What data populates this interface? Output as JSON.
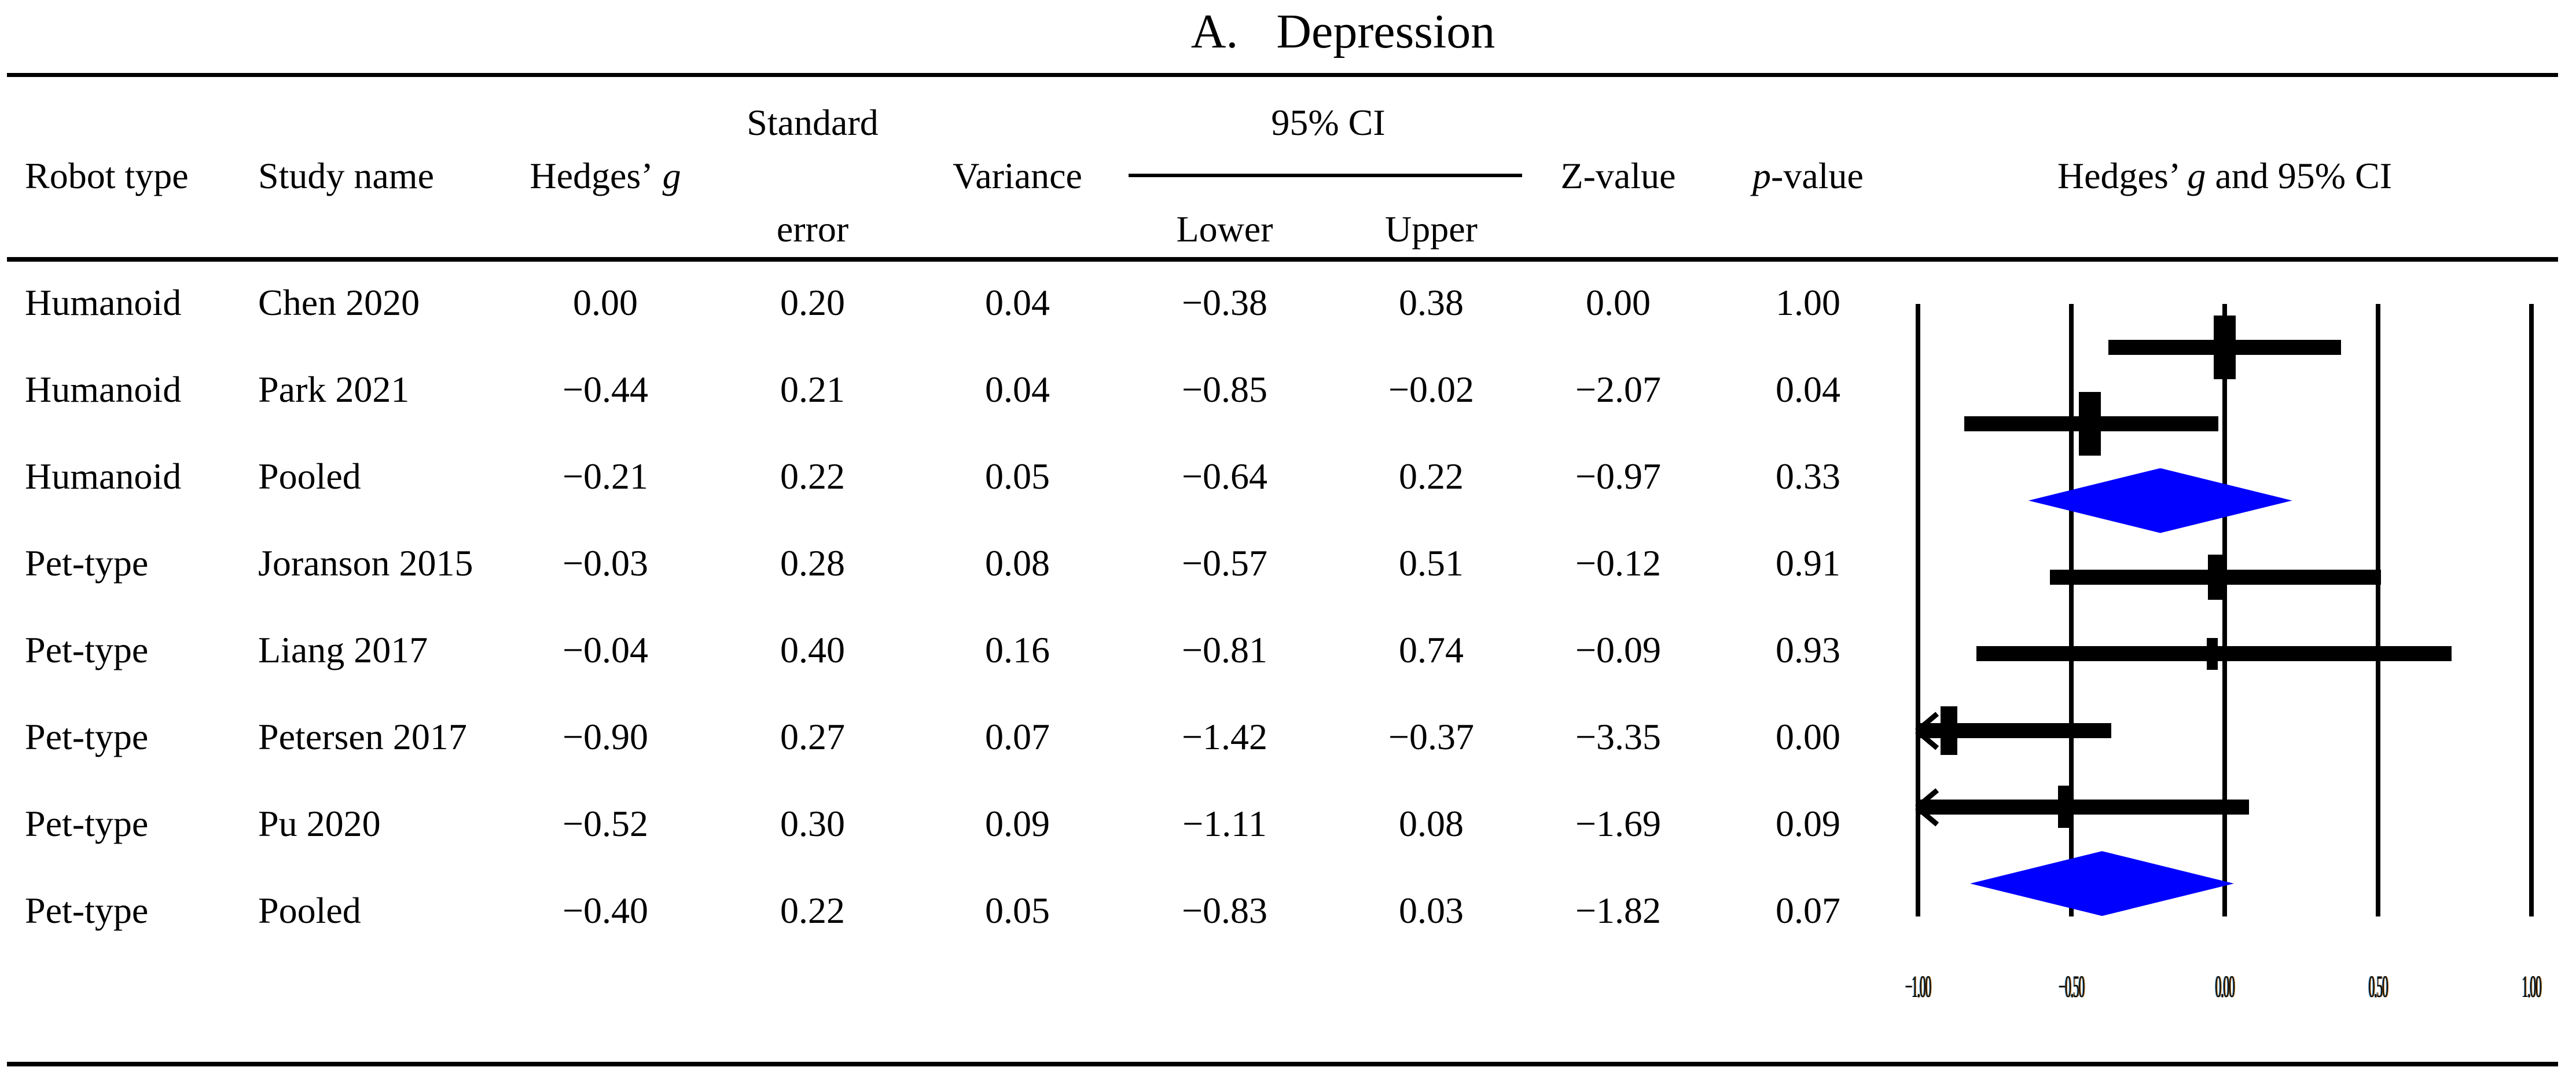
{
  "title": {
    "prefix": "A.",
    "text": "Depression"
  },
  "table": {
    "headers": {
      "robot_type": "Robot type",
      "study_name": "Study name",
      "hedges_prefix": "Hedges’",
      "hedges_g_italic": "g",
      "standard_line1": "Standard",
      "standard_line2": "error",
      "variance": "Variance",
      "ci_group": "95% CI",
      "ci_lower": "Lower",
      "ci_upper": "Upper",
      "z_value": "Z-value",
      "p_italic": "p",
      "p_suffix": "-value",
      "plot_prefix": "Hedges’ ",
      "plot_g_italic": "g",
      "plot_suffix": " and 95% CI"
    },
    "rows": [
      {
        "robot_type": "Humanoid",
        "study": "Chen 2020",
        "g": "0.00",
        "se": "0.20",
        "variance": "0.04",
        "lower": "−0.38",
        "upper": "0.38",
        "z": "0.00",
        "p": "1.00"
      },
      {
        "robot_type": "Humanoid",
        "study": "Park 2021",
        "g": "−0.44",
        "se": "0.21",
        "variance": "0.04",
        "lower": "−0.85",
        "upper": "−0.02",
        "z": "−2.07",
        "p": "0.04"
      },
      {
        "robot_type": "Humanoid",
        "study": "Pooled",
        "g": "−0.21",
        "se": "0.22",
        "variance": "0.05",
        "lower": "−0.64",
        "upper": "0.22",
        "z": "−0.97",
        "p": "0.33"
      },
      {
        "robot_type": "Pet-type",
        "study": "Joranson 2015",
        "g": "−0.03",
        "se": "0.28",
        "variance": "0.08",
        "lower": "−0.57",
        "upper": "0.51",
        "z": "−0.12",
        "p": "0.91"
      },
      {
        "robot_type": "Pet-type",
        "study": "Liang 2017",
        "g": "−0.04",
        "se": "0.40",
        "variance": "0.16",
        "lower": "−0.81",
        "upper": "0.74",
        "z": "−0.09",
        "p": "0.93"
      },
      {
        "robot_type": "Pet-type",
        "study": "Petersen 2017",
        "g": "−0.90",
        "se": "0.27",
        "variance": "0.07",
        "lower": "−1.42",
        "upper": "−0.37",
        "z": "−3.35",
        "p": "0.00"
      },
      {
        "robot_type": "Pet-type",
        "study": "Pu 2020",
        "g": "−0.52",
        "se": "0.30",
        "variance": "0.09",
        "lower": "−1.11",
        "upper": "0.08",
        "z": "−1.69",
        "p": "0.09"
      },
      {
        "robot_type": "Pet-type",
        "study": "Pooled",
        "g": "−0.40",
        "se": "0.22",
        "variance": "0.05",
        "lower": "−0.83",
        "upper": "0.03",
        "z": "−1.82",
        "p": "0.07"
      }
    ]
  },
  "chart_data": {
    "type": "scatter",
    "subtype": "forest-plot",
    "title": "Hedges' g and 95% CI",
    "xlabel": "",
    "ylabel": "",
    "xlim": [
      -1.05,
      1.05
    ],
    "x_ticks": [
      -1.0,
      -0.5,
      0.0,
      0.5,
      1.0
    ],
    "x_tick_labels": [
      "−1.00",
      "−0.50",
      "0.00",
      "0.50",
      "1.00"
    ],
    "grid": true,
    "legend": false,
    "marker_color": "#000000",
    "diamond_color": "#0000ff",
    "clip_min": -1.0,
    "points": [
      {
        "group": "Humanoid",
        "study": "Chen 2020",
        "g": 0.0,
        "lower": -0.38,
        "upper": 0.38,
        "variance": 0.04,
        "pooled": false
      },
      {
        "group": "Humanoid",
        "study": "Park 2021",
        "g": -0.44,
        "lower": -0.85,
        "upper": -0.02,
        "variance": 0.04,
        "pooled": false
      },
      {
        "group": "Humanoid",
        "study": "Pooled",
        "g": -0.21,
        "lower": -0.64,
        "upper": 0.22,
        "variance": 0.05,
        "pooled": true
      },
      {
        "group": "Pet-type",
        "study": "Joranson 2015",
        "g": -0.03,
        "lower": -0.57,
        "upper": 0.51,
        "variance": 0.08,
        "pooled": false
      },
      {
        "group": "Pet-type",
        "study": "Liang 2017",
        "g": -0.04,
        "lower": -0.81,
        "upper": 0.74,
        "variance": 0.16,
        "pooled": false
      },
      {
        "group": "Pet-type",
        "study": "Petersen 2017",
        "g": -0.9,
        "lower": -1.42,
        "upper": -0.37,
        "variance": 0.07,
        "pooled": false
      },
      {
        "group": "Pet-type",
        "study": "Pu 2020",
        "g": -0.52,
        "lower": -1.11,
        "upper": 0.08,
        "variance": 0.09,
        "pooled": false
      },
      {
        "group": "Pet-type",
        "study": "Pooled",
        "g": -0.4,
        "lower": -0.83,
        "upper": 0.03,
        "variance": 0.05,
        "pooled": true
      }
    ]
  }
}
